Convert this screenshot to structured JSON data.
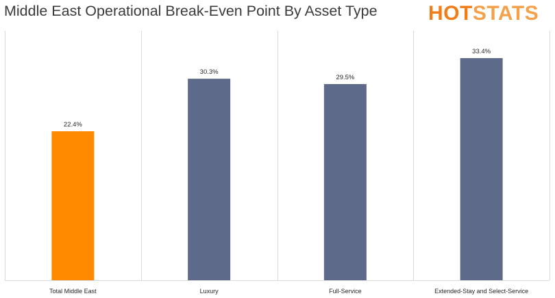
{
  "title": "Middle East Operational Break-Even Point By Asset Type",
  "logo": {
    "part1": "HOT",
    "part2": "STATS",
    "color1": "#f07d1a",
    "color2": "#f5a04a"
  },
  "chart_data": {
    "type": "bar",
    "categories": [
      "Total Middle East",
      "Luxury",
      "Full-Service",
      "Extended-Stay and Select-Service"
    ],
    "values": [
      22.4,
      30.3,
      29.5,
      33.4
    ],
    "value_labels": [
      "22.4%",
      "30.3%",
      "29.5%",
      "33.4%"
    ],
    "colors": [
      "#ff8a00",
      "#5d6a8a",
      "#5d6a8a",
      "#5d6a8a"
    ],
    "ylim": [
      0,
      37
    ],
    "grid": false,
    "legend": "none",
    "xlabel": "",
    "ylabel": ""
  }
}
